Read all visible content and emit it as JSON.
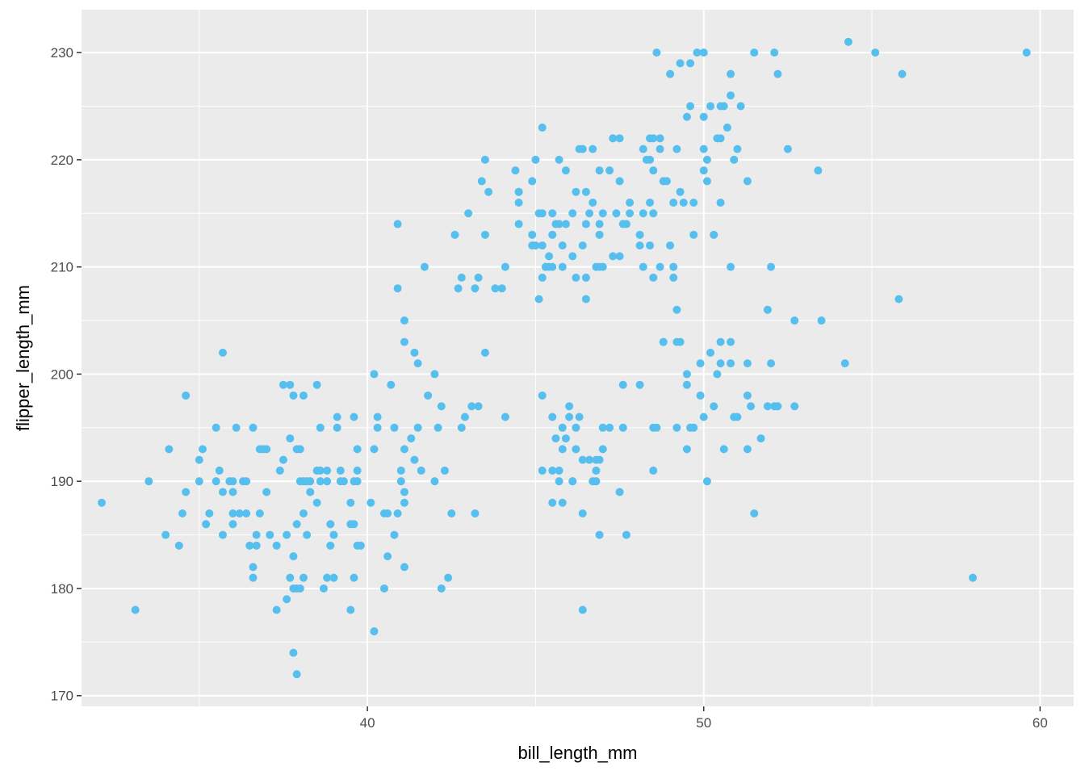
{
  "chart_data": {
    "type": "scatter",
    "title": "",
    "xlabel": "bill_length_mm",
    "ylabel": "flipper_length_mm",
    "xlim": [
      31.5,
      61.0
    ],
    "ylim": [
      169.0,
      234.0
    ],
    "x_ticks": [
      40,
      50,
      60
    ],
    "y_ticks": [
      170,
      180,
      190,
      200,
      210,
      220,
      230
    ],
    "grid": true,
    "legend": "none",
    "colors": {
      "point": "#56bfee",
      "panel": "#ebebeb",
      "grid": "#ffffff",
      "tick_text": "#4d4d4d"
    },
    "points": [
      [
        32.1,
        188
      ],
      [
        33.1,
        178
      ],
      [
        33.5,
        190
      ],
      [
        34.0,
        185
      ],
      [
        34.1,
        193
      ],
      [
        34.4,
        184
      ],
      [
        34.5,
        187
      ],
      [
        34.6,
        189
      ],
      [
        34.6,
        198
      ],
      [
        35.0,
        192
      ],
      [
        35.0,
        190
      ],
      [
        35.1,
        193
      ],
      [
        35.2,
        186
      ],
      [
        35.3,
        187
      ],
      [
        35.5,
        195
      ],
      [
        35.5,
        190
      ],
      [
        35.6,
        191
      ],
      [
        35.7,
        189
      ],
      [
        35.7,
        185
      ],
      [
        35.7,
        202
      ],
      [
        35.9,
        190
      ],
      [
        36.0,
        190
      ],
      [
        36.0,
        187
      ],
      [
        36.0,
        189
      ],
      [
        36.0,
        186
      ],
      [
        36.1,
        195
      ],
      [
        36.2,
        187
      ],
      [
        36.3,
        190
      ],
      [
        36.4,
        187
      ],
      [
        36.4,
        190
      ],
      [
        36.5,
        184
      ],
      [
        36.6,
        195
      ],
      [
        36.6,
        182
      ],
      [
        36.6,
        181
      ],
      [
        36.7,
        185
      ],
      [
        36.7,
        184
      ],
      [
        36.8,
        193
      ],
      [
        36.8,
        187
      ],
      [
        36.9,
        193
      ],
      [
        37.0,
        189
      ],
      [
        37.0,
        193
      ],
      [
        37.1,
        185
      ],
      [
        37.3,
        184
      ],
      [
        37.3,
        178
      ],
      [
        37.5,
        199
      ],
      [
        37.5,
        192
      ],
      [
        37.4,
        191
      ],
      [
        37.6,
        179
      ],
      [
        37.6,
        185
      ],
      [
        37.7,
        194
      ],
      [
        37.7,
        181
      ],
      [
        37.7,
        199
      ],
      [
        37.8,
        183
      ],
      [
        37.8,
        180
      ],
      [
        37.8,
        198
      ],
      [
        37.8,
        174
      ],
      [
        37.9,
        193
      ],
      [
        37.9,
        186
      ],
      [
        37.9,
        180
      ],
      [
        37.9,
        172
      ],
      [
        38.0,
        190
      ],
      [
        38.0,
        193
      ],
      [
        38.0,
        180
      ],
      [
        38.1,
        198
      ],
      [
        38.1,
        181
      ],
      [
        38.1,
        190
      ],
      [
        38.1,
        187
      ],
      [
        38.2,
        190
      ],
      [
        38.2,
        185
      ],
      [
        38.3,
        190
      ],
      [
        38.3,
        189
      ],
      [
        38.5,
        199
      ],
      [
        38.5,
        191
      ],
      [
        38.5,
        188
      ],
      [
        38.6,
        195
      ],
      [
        38.6,
        191
      ],
      [
        38.6,
        190
      ],
      [
        38.7,
        180
      ],
      [
        38.8,
        181
      ],
      [
        38.8,
        190
      ],
      [
        38.8,
        191
      ],
      [
        38.9,
        184
      ],
      [
        38.9,
        186
      ],
      [
        39.0,
        185
      ],
      [
        39.0,
        181
      ],
      [
        39.1,
        196
      ],
      [
        39.1,
        195
      ],
      [
        39.2,
        190
      ],
      [
        39.2,
        191
      ],
      [
        39.3,
        190
      ],
      [
        39.5,
        186
      ],
      [
        39.5,
        188
      ],
      [
        39.6,
        181
      ],
      [
        39.6,
        190
      ],
      [
        39.5,
        178
      ],
      [
        39.6,
        186
      ],
      [
        39.6,
        196
      ],
      [
        39.7,
        190
      ],
      [
        39.7,
        191
      ],
      [
        39.7,
        193
      ],
      [
        39.7,
        184
      ],
      [
        39.8,
        184
      ],
      [
        40.1,
        188
      ],
      [
        40.2,
        176
      ],
      [
        40.2,
        200
      ],
      [
        40.2,
        193
      ],
      [
        40.3,
        196
      ],
      [
        40.3,
        195
      ],
      [
        40.5,
        187
      ],
      [
        40.5,
        180
      ],
      [
        40.6,
        183
      ],
      [
        40.6,
        187
      ],
      [
        40.7,
        199
      ],
      [
        40.8,
        185
      ],
      [
        40.8,
        195
      ],
      [
        40.9,
        187
      ],
      [
        40.9,
        208
      ],
      [
        40.9,
        214
      ],
      [
        41.0,
        190
      ],
      [
        41.0,
        191
      ],
      [
        41.1,
        182
      ],
      [
        41.1,
        188
      ],
      [
        41.1,
        189
      ],
      [
        41.1,
        193
      ],
      [
        41.1,
        203
      ],
      [
        41.1,
        205
      ],
      [
        41.3,
        194
      ],
      [
        41.4,
        202
      ],
      [
        41.5,
        201
      ],
      [
        41.5,
        195
      ],
      [
        41.4,
        192
      ],
      [
        41.6,
        191
      ],
      [
        41.7,
        210
      ],
      [
        41.8,
        198
      ],
      [
        42.0,
        200
      ],
      [
        42.0,
        190
      ],
      [
        42.1,
        195
      ],
      [
        42.2,
        197
      ],
      [
        42.2,
        180
      ],
      [
        42.3,
        191
      ],
      [
        42.4,
        181
      ],
      [
        42.5,
        187
      ],
      [
        42.6,
        213
      ],
      [
        42.7,
        208
      ],
      [
        42.8,
        209
      ],
      [
        42.8,
        195
      ],
      [
        42.9,
        196
      ],
      [
        43.0,
        215
      ],
      [
        43.1,
        197
      ],
      [
        43.2,
        187
      ],
      [
        43.2,
        208
      ],
      [
        43.3,
        209
      ],
      [
        43.3,
        197
      ],
      [
        43.4,
        218
      ],
      [
        43.5,
        220
      ],
      [
        43.5,
        202
      ],
      [
        43.5,
        213
      ],
      [
        43.6,
        217
      ],
      [
        43.8,
        208
      ],
      [
        44.0,
        208
      ],
      [
        44.1,
        210
      ],
      [
        44.1,
        196
      ],
      [
        44.4,
        219
      ],
      [
        44.5,
        217
      ],
      [
        44.5,
        216
      ],
      [
        44.5,
        214
      ],
      [
        44.9,
        212
      ],
      [
        44.9,
        213
      ],
      [
        45.0,
        220
      ],
      [
        45.1,
        207
      ],
      [
        45.1,
        215
      ],
      [
        45.2,
        212
      ],
      [
        45.2,
        198
      ],
      [
        45.2,
        191
      ],
      [
        45.3,
        210
      ],
      [
        45.2,
        223
      ],
      [
        45.2,
        215
      ],
      [
        45.4,
        211
      ],
      [
        45.5,
        210
      ],
      [
        45.5,
        188
      ],
      [
        45.5,
        196
      ],
      [
        45.6,
        194
      ],
      [
        45.7,
        214
      ],
      [
        45.7,
        220
      ],
      [
        45.7,
        191
      ],
      [
        45.8,
        193
      ],
      [
        45.8,
        210
      ],
      [
        45.9,
        214
      ],
      [
        45.8,
        195
      ],
      [
        45.9,
        219
      ],
      [
        46.0,
        197
      ],
      [
        46.1,
        190
      ],
      [
        46.1,
        211
      ],
      [
        46.2,
        195
      ],
      [
        46.2,
        193
      ],
      [
        46.4,
        178
      ],
      [
        46.4,
        221
      ],
      [
        46.5,
        217
      ],
      [
        46.5,
        214
      ],
      [
        46.4,
        187
      ],
      [
        46.5,
        209
      ],
      [
        46.6,
        215
      ],
      [
        46.7,
        221
      ],
      [
        46.7,
        216
      ],
      [
        46.8,
        190
      ],
      [
        46.8,
        191
      ],
      [
        46.8,
        210
      ],
      [
        46.9,
        210
      ],
      [
        46.9,
        213
      ],
      [
        46.9,
        192
      ],
      [
        47.0,
        193
      ],
      [
        47.0,
        210
      ],
      [
        47.2,
        219
      ],
      [
        47.2,
        195
      ],
      [
        47.3,
        211
      ],
      [
        47.4,
        215
      ],
      [
        47.5,
        189
      ],
      [
        47.5,
        222
      ],
      [
        47.6,
        214
      ],
      [
        47.7,
        185
      ],
      [
        47.8,
        215
      ],
      [
        48.1,
        199
      ],
      [
        48.2,
        210
      ],
      [
        48.2,
        215
      ],
      [
        48.1,
        212
      ],
      [
        48.4,
        212
      ],
      [
        48.4,
        216
      ],
      [
        48.5,
        215
      ],
      [
        48.5,
        222
      ],
      [
        48.5,
        209
      ],
      [
        48.6,
        195
      ],
      [
        48.7,
        210
      ],
      [
        48.7,
        221
      ],
      [
        48.8,
        218
      ],
      [
        49.0,
        212
      ],
      [
        49.1,
        210
      ],
      [
        49.1,
        209
      ],
      [
        49.2,
        206
      ],
      [
        49.3,
        203
      ],
      [
        49.5,
        199
      ],
      [
        49.6,
        195
      ],
      [
        49.7,
        213
      ],
      [
        49.9,
        201
      ],
      [
        50.0,
        221
      ],
      [
        50.0,
        219
      ],
      [
        50.1,
        220
      ],
      [
        50.3,
        213
      ],
      [
        50.5,
        216
      ],
      [
        50.5,
        222
      ],
      [
        50.6,
        225
      ],
      [
        50.7,
        223
      ],
      [
        50.8,
        210
      ],
      [
        50.9,
        220
      ],
      [
        51.0,
        221
      ],
      [
        51.1,
        225
      ],
      [
        51.3,
        218
      ],
      [
        51.5,
        230
      ],
      [
        51.9,
        206
      ],
      [
        52.0,
        210
      ],
      [
        52.1,
        230
      ],
      [
        52.2,
        228
      ],
      [
        52.5,
        221
      ],
      [
        52.7,
        205
      ],
      [
        53.4,
        219
      ],
      [
        53.5,
        205
      ],
      [
        54.2,
        201
      ],
      [
        54.3,
        231
      ],
      [
        55.1,
        230
      ],
      [
        55.8,
        207
      ],
      [
        55.9,
        228
      ],
      [
        58.0,
        181
      ],
      [
        59.6,
        230
      ],
      [
        48.6,
        230
      ],
      [
        49.0,
        228
      ],
      [
        49.3,
        229
      ],
      [
        49.6,
        229
      ],
      [
        49.8,
        230
      ],
      [
        50.0,
        230
      ],
      [
        49.6,
        225
      ],
      [
        49.5,
        224
      ],
      [
        50.0,
        224
      ],
      [
        50.2,
        225
      ],
      [
        50.5,
        225
      ],
      [
        50.4,
        222
      ],
      [
        50.8,
        226
      ],
      [
        50.8,
        228
      ],
      [
        48.7,
        222
      ],
      [
        48.9,
        218
      ],
      [
        49.2,
        221
      ],
      [
        48.4,
        220
      ],
      [
        48.5,
        219
      ],
      [
        49.1,
        216
      ],
      [
        49.3,
        217
      ],
      [
        49.7,
        216
      ],
      [
        50.1,
        218
      ],
      [
        49.4,
        216
      ],
      [
        48.2,
        221
      ],
      [
        47.8,
        216
      ],
      [
        47.5,
        218
      ],
      [
        47.3,
        222
      ],
      [
        47.0,
        215
      ],
      [
        46.9,
        219
      ],
      [
        46.3,
        221
      ],
      [
        46.2,
        217
      ],
      [
        45.5,
        215
      ],
      [
        45.3,
        210
      ],
      [
        44.9,
        218
      ],
      [
        45.2,
        209
      ],
      [
        45.0,
        212
      ],
      [
        45.4,
        210
      ],
      [
        46.2,
        209
      ],
      [
        46.9,
        214
      ],
      [
        47.7,
        214
      ],
      [
        48.1,
        213
      ],
      [
        48.4,
        222
      ],
      [
        48.3,
        220
      ],
      [
        47.5,
        211
      ],
      [
        46.4,
        212
      ],
      [
        45.8,
        212
      ],
      [
        45.6,
        214
      ],
      [
        46.5,
        207
      ],
      [
        45.5,
        213
      ],
      [
        44.5,
        217
      ],
      [
        46.1,
        215
      ],
      [
        50.5,
        203
      ],
      [
        50.4,
        200
      ],
      [
        50.5,
        201
      ],
      [
        50.3,
        197
      ],
      [
        50.8,
        203
      ],
      [
        51.3,
        201
      ],
      [
        50.8,
        201
      ],
      [
        52.0,
        201
      ],
      [
        52.2,
        197
      ],
      [
        51.9,
        197
      ],
      [
        51.4,
        197
      ],
      [
        51.3,
        198
      ],
      [
        50.2,
        202
      ],
      [
        49.5,
        200
      ],
      [
        49.2,
        203
      ],
      [
        48.8,
        203
      ],
      [
        48.5,
        191
      ],
      [
        47.6,
        199
      ],
      [
        49.9,
        198
      ],
      [
        50.0,
        196
      ],
      [
        50.1,
        190
      ],
      [
        50.6,
        193
      ],
      [
        51.0,
        196
      ],
      [
        51.3,
        193
      ],
      [
        51.5,
        187
      ],
      [
        51.7,
        194
      ],
      [
        52.1,
        197
      ],
      [
        52.7,
        197
      ],
      [
        48.8,
        203
      ],
      [
        47.6,
        195
      ],
      [
        49.2,
        195
      ],
      [
        49.7,
        195
      ],
      [
        50.9,
        196
      ],
      [
        49.5,
        193
      ],
      [
        48.5,
        195
      ],
      [
        47.0,
        195
      ],
      [
        46.8,
        192
      ],
      [
        46.7,
        190
      ],
      [
        46.6,
        192
      ],
      [
        46.3,
        196
      ],
      [
        46.1,
        190
      ],
      [
        45.9,
        194
      ],
      [
        45.8,
        188
      ],
      [
        45.5,
        191
      ],
      [
        45.7,
        190
      ],
      [
        46.0,
        196
      ],
      [
        46.4,
        192
      ],
      [
        46.9,
        185
      ]
    ]
  }
}
